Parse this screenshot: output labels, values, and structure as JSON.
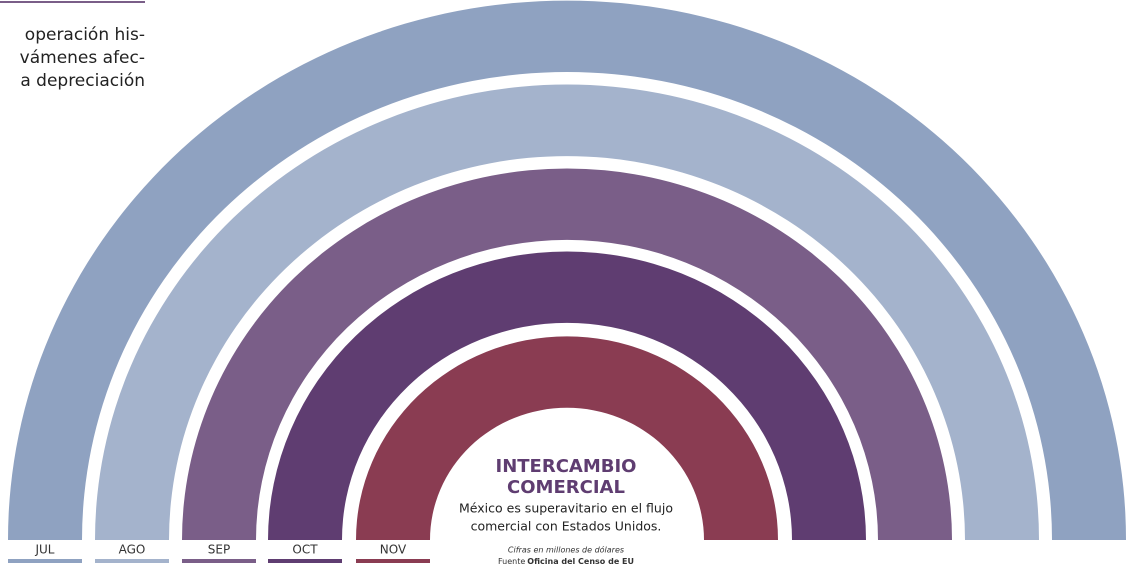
{
  "intro": {
    "lines": [
      "operación his-",
      "vámenes afec-",
      "a depreciación"
    ]
  },
  "months": [
    "JUL",
    "AGO",
    "SEP",
    "OCT",
    "NOV"
  ],
  "colors": [
    "#8fa2c1",
    "#a4b3cc",
    "#7a5e88",
    "#5f3d71",
    "#8a3c52"
  ],
  "panel": {
    "title": [
      "INTERCAMBIO",
      "COMERCIAL"
    ],
    "subtitle": [
      "México es superavitario en el flujo",
      "comercial con Estados Unidos."
    ],
    "note": "Cifras en millones de dólares",
    "source_label": "Fuente",
    "source": "Oficina del Censo de EU"
  }
}
